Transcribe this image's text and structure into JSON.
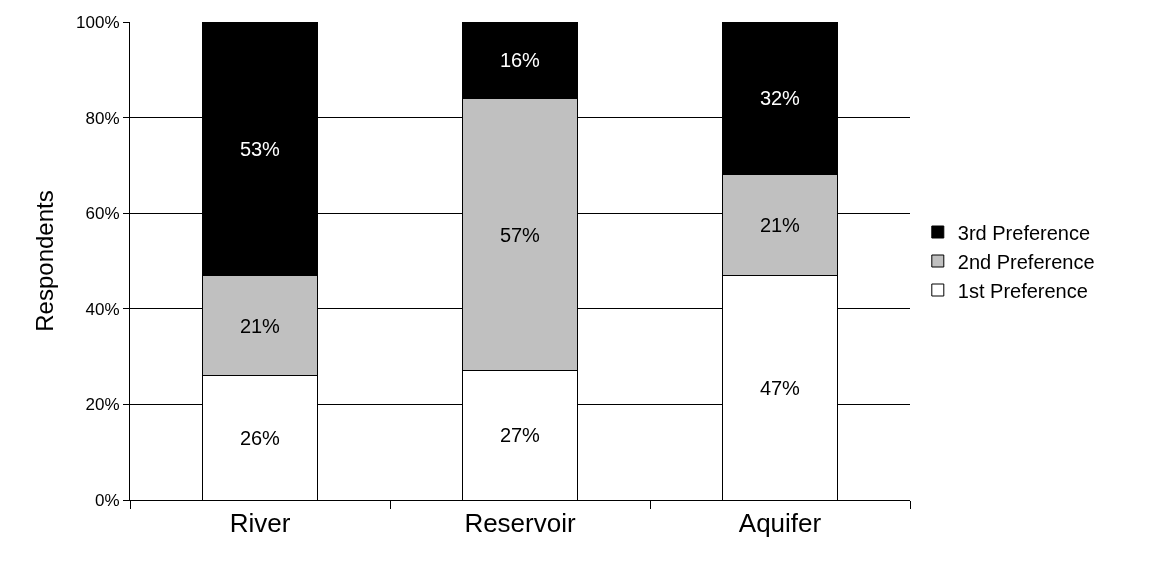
{
  "chart_data": {
    "type": "bar",
    "stacked": true,
    "ylabel": "Respondents",
    "categories": [
      "River",
      "Reservoir",
      "Aquifer"
    ],
    "series": [
      {
        "name": "1st Preference",
        "color": "#ffffff",
        "values": [
          26,
          27,
          47
        ],
        "value_labels": [
          "26%",
          "27%",
          "47%"
        ]
      },
      {
        "name": "2nd Preference",
        "color": "#c0c0c0",
        "values": [
          21,
          57,
          21
        ],
        "value_labels": [
          "21%",
          "57%",
          "21%"
        ]
      },
      {
        "name": "3rd Preference",
        "color": "#000000",
        "values": [
          53,
          16,
          32
        ],
        "value_labels": [
          "53%",
          "16%",
          "32%"
        ]
      }
    ],
    "ylim": [
      0,
      100
    ],
    "yticks": [
      {
        "value": 0,
        "label": "0%"
      },
      {
        "value": 20,
        "label": "20%"
      },
      {
        "value": 40,
        "label": "40%"
      },
      {
        "value": 60,
        "label": "60%"
      },
      {
        "value": 80,
        "label": "80%"
      },
      {
        "value": 100,
        "label": "100%"
      }
    ],
    "grid": "y",
    "legend": "right"
  }
}
